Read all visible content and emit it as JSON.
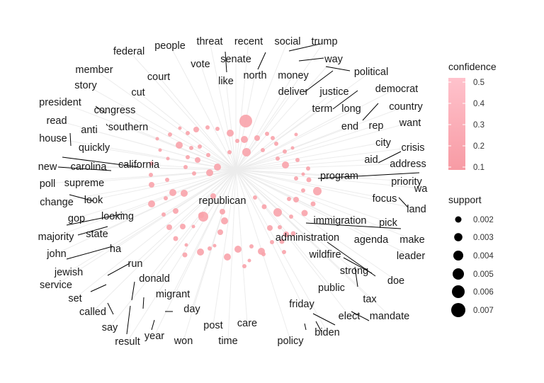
{
  "network": {
    "center_term": "republican",
    "terms": [
      "people",
      "threat",
      "recent",
      "social",
      "trump",
      "federal",
      "vote",
      "senate",
      "way",
      "member",
      "court",
      "north",
      "money",
      "political",
      "like",
      "story",
      "cut",
      "deliver",
      "justice",
      "democrat",
      "president",
      "congress",
      "term",
      "long",
      "country",
      "read",
      "anti",
      "southern",
      "end",
      "rep",
      "want",
      "house",
      "quickly",
      "city",
      "crisis",
      "california",
      "aid",
      "address",
      "new",
      "carolina",
      "supreme",
      "program",
      "priority",
      "poll",
      "look",
      "wa",
      "change",
      "focus",
      "land",
      "gop",
      "looking",
      "immigration",
      "pick",
      "majority",
      "state",
      "agenda",
      "make",
      "administration",
      "ha",
      "john",
      "wildfire",
      "leader",
      "run",
      "jewish",
      "strong",
      "service",
      "donald",
      "doe",
      "set",
      "migrant",
      "public",
      "tax",
      "called",
      "day",
      "friday",
      "elect",
      "mandate",
      "say",
      "care",
      "biden",
      "post",
      "year",
      "won",
      "time",
      "result",
      "policy"
    ],
    "colors": {
      "node_fill": "#f8a3ab",
      "edge": "#ececec",
      "label": "#1a1a1a",
      "leader_line": "#000000"
    }
  },
  "legend": {
    "confidence": {
      "title": "confidence",
      "ticks": [
        "0.5",
        "0.4",
        "0.3",
        "0.2",
        "0.1"
      ],
      "colors": {
        "high": "#ffc2cc",
        "low": "#f79ba4"
      }
    },
    "support": {
      "title": "support",
      "items": [
        "0.002",
        "0.003",
        "0.004",
        "0.005",
        "0.006",
        "0.007"
      ]
    }
  }
}
